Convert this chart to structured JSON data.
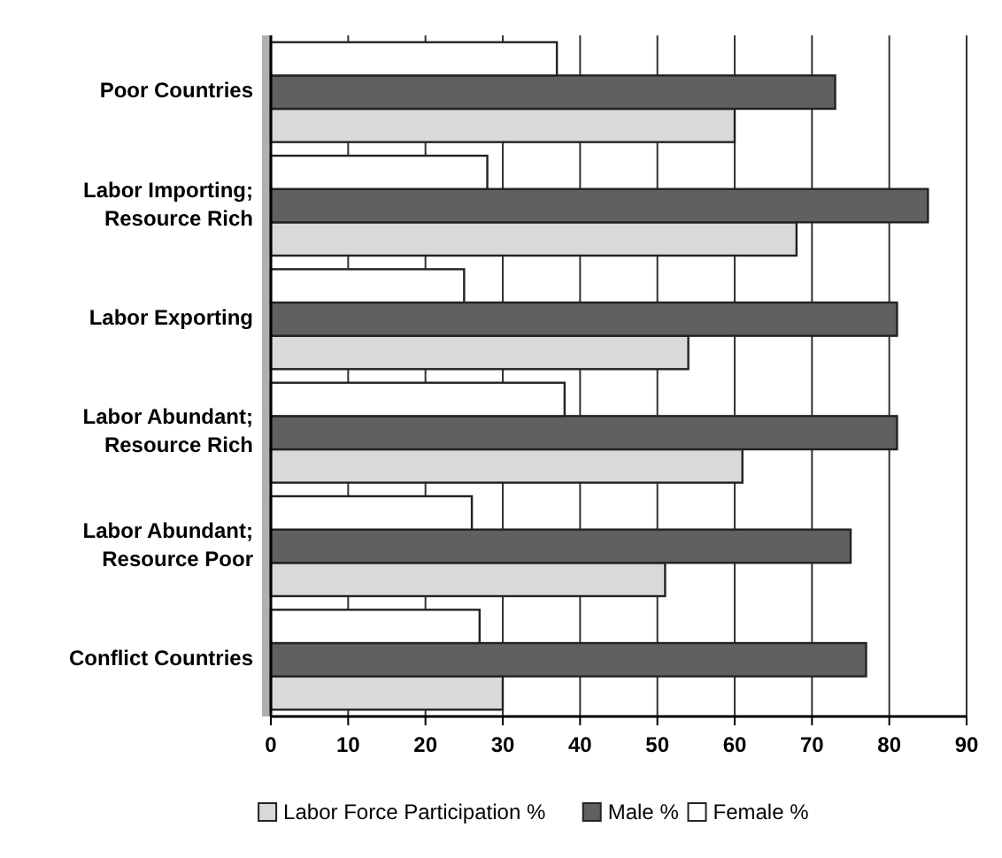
{
  "chart_data": {
    "type": "bar",
    "orientation": "horizontal",
    "categories": [
      "Poor Countries",
      "Labor Importing; Resource Rich",
      "Labor Exporting",
      "Labor Abundant; Resource Rich",
      "Labor Abundant; Resource Poor",
      "Conflict Countries"
    ],
    "series": [
      {
        "name": "Labor Force Participation %",
        "color": "#d9d9d9",
        "values": [
          60,
          68,
          54,
          61,
          51,
          30
        ]
      },
      {
        "name": "Male %",
        "color": "#606060",
        "values": [
          73,
          85,
          81,
          81,
          75,
          77
        ]
      },
      {
        "name": "Female %",
        "color": "#ffffff",
        "values": [
          37,
          28,
          25,
          38,
          26,
          27
        ]
      }
    ],
    "xlim": [
      0,
      90
    ],
    "xticks": [
      0,
      10,
      20,
      30,
      40,
      50,
      60,
      70,
      80,
      90
    ],
    "grid": "x",
    "legend": "bottom"
  }
}
